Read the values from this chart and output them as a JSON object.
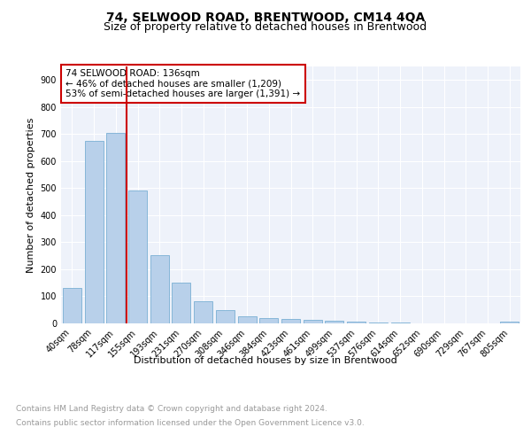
{
  "title": "74, SELWOOD ROAD, BRENTWOOD, CM14 4QA",
  "subtitle": "Size of property relative to detached houses in Brentwood",
  "xlabel": "Distribution of detached houses by size in Brentwood",
  "ylabel": "Number of detached properties",
  "bar_labels": [
    "40sqm",
    "78sqm",
    "117sqm",
    "155sqm",
    "193sqm",
    "231sqm",
    "270sqm",
    "308sqm",
    "346sqm",
    "384sqm",
    "423sqm",
    "461sqm",
    "499sqm",
    "537sqm",
    "576sqm",
    "614sqm",
    "652sqm",
    "690sqm",
    "729sqm",
    "767sqm",
    "805sqm"
  ],
  "bar_values": [
    130,
    675,
    703,
    493,
    253,
    152,
    83,
    50,
    25,
    20,
    17,
    12,
    10,
    5,
    3,
    2,
    1,
    1,
    0,
    0,
    8
  ],
  "bar_color": "#b8d0ea",
  "bar_edge_color": "#7aafd4",
  "annotation_text": "74 SELWOOD ROAD: 136sqm\n← 46% of detached houses are smaller (1,209)\n53% of semi-detached houses are larger (1,391) →",
  "annotation_box_color": "#ffffff",
  "annotation_box_edge_color": "#cc0000",
  "vline_x": 2.5,
  "vline_color": "#cc0000",
  "ylim": [
    0,
    950
  ],
  "yticks": [
    0,
    100,
    200,
    300,
    400,
    500,
    600,
    700,
    800,
    900
  ],
  "plot_bg_color": "#eef2fa",
  "footer_line1": "Contains HM Land Registry data © Crown copyright and database right 2024.",
  "footer_line2": "Contains public sector information licensed under the Open Government Licence v3.0.",
  "title_fontsize": 10,
  "subtitle_fontsize": 9,
  "label_fontsize": 8,
  "tick_fontsize": 7,
  "footer_fontsize": 6.5,
  "ylabel_fontsize": 8
}
